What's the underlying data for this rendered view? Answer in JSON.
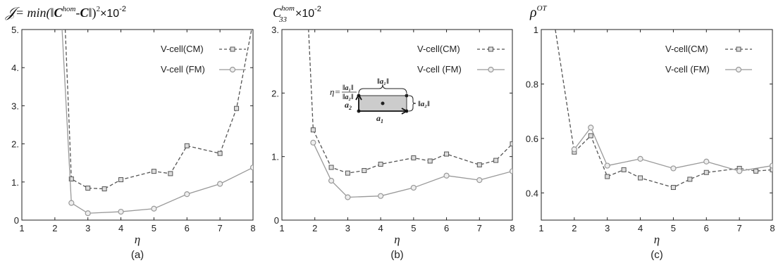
{
  "chart_data": [
    {
      "type": "line",
      "panel_label": "(a)",
      "title": "𝒥= min(‖C^hom-Ĉ‖)²×10⁻²",
      "title_parts": {
        "j": "𝒥",
        "eq": "= min(‖",
        "c": "C",
        "hom": "hom",
        "dash": "-",
        "chat": "C",
        "close": "‖)",
        "sq": "2",
        "times": "×10",
        "exp": "-2"
      },
      "xlabel": "η",
      "xlim": [
        1,
        8
      ],
      "ylim": [
        0,
        5
      ],
      "xticks": [
        1,
        2,
        3,
        4,
        5,
        6,
        7,
        8
      ],
      "yticks": [
        0,
        1,
        2,
        3,
        4,
        5
      ],
      "ytick_labels": [
        "0",
        "1.",
        "2.",
        "3.",
        "4.",
        "5."
      ],
      "legend_position": "top-right",
      "series": [
        {
          "name": "V-cell(CM)",
          "style": "dashed",
          "marker": "square",
          "color": "#555555",
          "x": [
            2.3,
            2.5,
            3.0,
            3.5,
            4.0,
            5.0,
            5.5,
            6.0,
            7.0,
            7.5,
            8.0
          ],
          "y": [
            5.3,
            1.08,
            0.84,
            0.82,
            1.06,
            1.28,
            1.22,
            1.95,
            1.75,
            2.93,
            5.2
          ]
        },
        {
          "name": "V-cell (FM)",
          "style": "solid",
          "marker": "circle",
          "color": "#999999",
          "x": [
            2.2,
            2.5,
            3.0,
            4.0,
            5.0,
            6.0,
            7.0,
            8.0
          ],
          "y": [
            5.3,
            0.45,
            0.18,
            0.22,
            0.3,
            0.68,
            0.95,
            1.38
          ]
        }
      ]
    },
    {
      "type": "line",
      "panel_label": "(b)",
      "title": "C₃₃^hom×10⁻²",
      "title_parts": {
        "c": "C",
        "sub": "33",
        "hom": "hom",
        "times": "×10",
        "exp": "-2"
      },
      "xlabel": "η",
      "xlim": [
        1,
        8
      ],
      "ylim": [
        0,
        3
      ],
      "xticks": [
        1,
        2,
        3,
        4,
        5,
        6,
        7,
        8
      ],
      "yticks": [
        0,
        1,
        2,
        3
      ],
      "ytick_labels": [
        "0",
        "1.",
        "2.",
        "3."
      ],
      "legend_position": "top-right",
      "series": [
        {
          "name": "V-cell(CM)",
          "style": "dashed",
          "marker": "square",
          "color": "#555555",
          "x": [
            1.8,
            1.95,
            2.5,
            3.0,
            3.5,
            4.0,
            5.0,
            5.5,
            6.0,
            7.0,
            7.5,
            8.0
          ],
          "y": [
            3.1,
            1.42,
            0.83,
            0.74,
            0.78,
            0.88,
            0.98,
            0.93,
            1.04,
            0.87,
            0.94,
            1.2
          ]
        },
        {
          "name": "V-cell (FM)",
          "style": "solid",
          "marker": "circle",
          "color": "#999999",
          "x": [
            1.95,
            2.5,
            3.0,
            4.0,
            5.0,
            6.0,
            7.0,
            8.0
          ],
          "y": [
            1.22,
            0.62,
            0.36,
            0.38,
            0.51,
            0.7,
            0.63,
            0.77
          ]
        }
      ],
      "inset": {
        "eta_label": "η=",
        "a1": "a",
        "a1_sub": "1",
        "a2": "a",
        "a2_sub": "2",
        "norm_a1": "‖a₁‖",
        "norm_a2": "‖a₂‖"
      }
    },
    {
      "type": "line",
      "panel_label": "(c)",
      "title": "ρ^OT",
      "title_parts": {
        "rho": "ρ",
        "sup": "OT"
      },
      "xlabel": "η",
      "xlim": [
        1,
        8
      ],
      "ylim": [
        0.3,
        1.0
      ],
      "xticks": [
        1,
        2,
        3,
        4,
        5,
        6,
        7,
        8
      ],
      "yticks": [
        0.4,
        0.6,
        0.8,
        1.0
      ],
      "ytick_labels": [
        "0.4",
        "0.6",
        "0.8",
        "1"
      ],
      "legend_position": "top-right",
      "series": [
        {
          "name": "V-cell(CM)",
          "style": "dashed",
          "marker": "square",
          "color": "#555555",
          "x": [
            1.4,
            2.0,
            2.5,
            3.0,
            3.5,
            4.0,
            5.0,
            5.5,
            6.0,
            7.0,
            7.5,
            8.0
          ],
          "y": [
            1.02,
            0.55,
            0.61,
            0.46,
            0.485,
            0.455,
            0.42,
            0.45,
            0.475,
            0.49,
            0.48,
            0.485
          ]
        },
        {
          "name": "V-cell (FM)",
          "style": "solid",
          "marker": "circle",
          "color": "#999999",
          "x": [
            2.0,
            2.5,
            3.0,
            4.0,
            5.0,
            6.0,
            7.0,
            8.0
          ],
          "y": [
            0.56,
            0.64,
            0.5,
            0.525,
            0.49,
            0.515,
            0.48,
            0.5
          ]
        }
      ]
    }
  ]
}
